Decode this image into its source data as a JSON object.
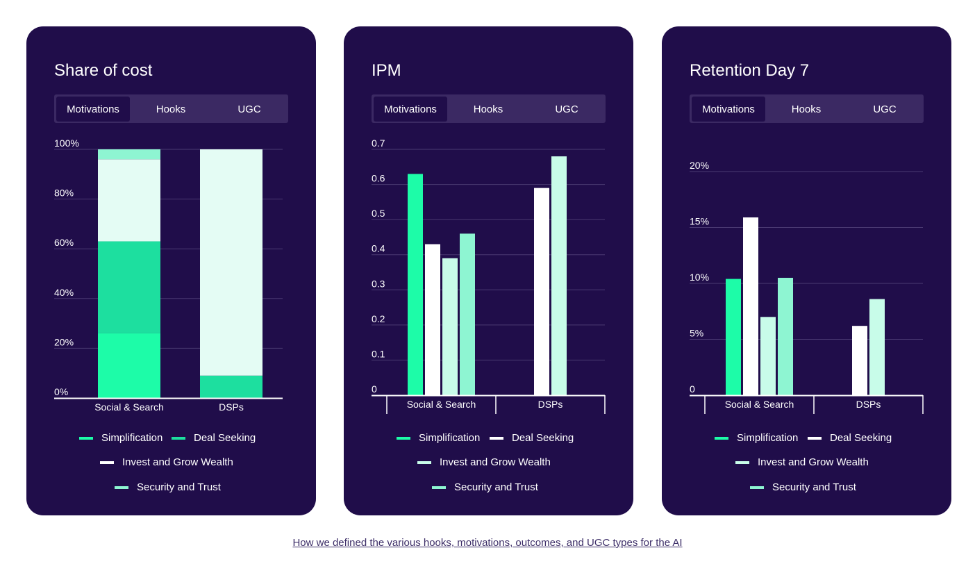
{
  "colors": {
    "card_bg": "#200d4a",
    "tabs_bg": "#3b2963",
    "grid": "#4a3a72",
    "axis": "#ffffff",
    "text": "#ffffff",
    "link": "#3d2e68"
  },
  "footer": {
    "link_text": "How we defined the various hooks, motivations, outcomes, and UGC types for the AI"
  },
  "chart_data": [
    {
      "type": "bar",
      "stacked": true,
      "title": "Share of cost",
      "tabs": [
        "Motivations",
        "Hooks",
        "UGC"
      ],
      "active_tab": "Motivations",
      "categories": [
        "Social & Search",
        "DSPs"
      ],
      "ylim": [
        0,
        100
      ],
      "yticks": [
        "0%",
        "20%",
        "40%",
        "60%",
        "80%",
        "100%"
      ],
      "grid": true,
      "legend_position": "bottom",
      "series": [
        {
          "name": "Simplification",
          "color": "#1dfca8",
          "values": [
            26,
            0
          ]
        },
        {
          "name": "Deal Seeking",
          "color": "#1ddf9f",
          "values": [
            37,
            9
          ]
        },
        {
          "name": "Invest and Grow Wealth",
          "color": "#e4fcf4",
          "values": [
            33,
            91
          ]
        },
        {
          "name": "Security and Trust",
          "color": "#8ef5d2",
          "values": [
            4,
            0
          ]
        }
      ]
    },
    {
      "type": "bar",
      "stacked": false,
      "title": "IPM",
      "tabs": [
        "Motivations",
        "Hooks",
        "UGC"
      ],
      "active_tab": "Motivations",
      "categories": [
        "Social & Search",
        "DSPs"
      ],
      "ylim": [
        0,
        0.7
      ],
      "yticks": [
        "0",
        "0.1",
        "0.2",
        "0.3",
        "0.4",
        "0.5",
        "0.6",
        "0.7"
      ],
      "grid": true,
      "legend_position": "bottom",
      "series": [
        {
          "name": "Simplification",
          "color": "#1dfca8",
          "values": [
            0.63,
            null
          ]
        },
        {
          "name": "Deal Seeking",
          "color": "#ffffff",
          "values": [
            0.43,
            0.59
          ]
        },
        {
          "name": "Invest and Grow Wealth",
          "color": "#c8fce9",
          "values": [
            0.39,
            0.68
          ]
        },
        {
          "name": "Security and Trust",
          "color": "#8ef5d2",
          "values": [
            0.46,
            null
          ]
        }
      ]
    },
    {
      "type": "bar",
      "stacked": false,
      "title": "Retention Day 7",
      "tabs": [
        "Motivations",
        "Hooks",
        "UGC"
      ],
      "active_tab": "Motivations",
      "categories": [
        "Social & Search",
        "DSPs"
      ],
      "ylim": [
        0,
        20
      ],
      "yticks": [
        "0",
        "5%",
        "10%",
        "15%",
        "20%"
      ],
      "grid": true,
      "legend_position": "bottom",
      "series": [
        {
          "name": "Simplification",
          "color": "#1dfca8",
          "values": [
            10.4,
            null
          ]
        },
        {
          "name": "Deal Seeking",
          "color": "#ffffff",
          "values": [
            15.9,
            6.2
          ]
        },
        {
          "name": "Invest and Grow Wealth",
          "color": "#c8fce9",
          "values": [
            7.0,
            8.6
          ]
        },
        {
          "name": "Security and Trust",
          "color": "#8ef5d2",
          "values": [
            10.5,
            null
          ]
        }
      ]
    }
  ]
}
